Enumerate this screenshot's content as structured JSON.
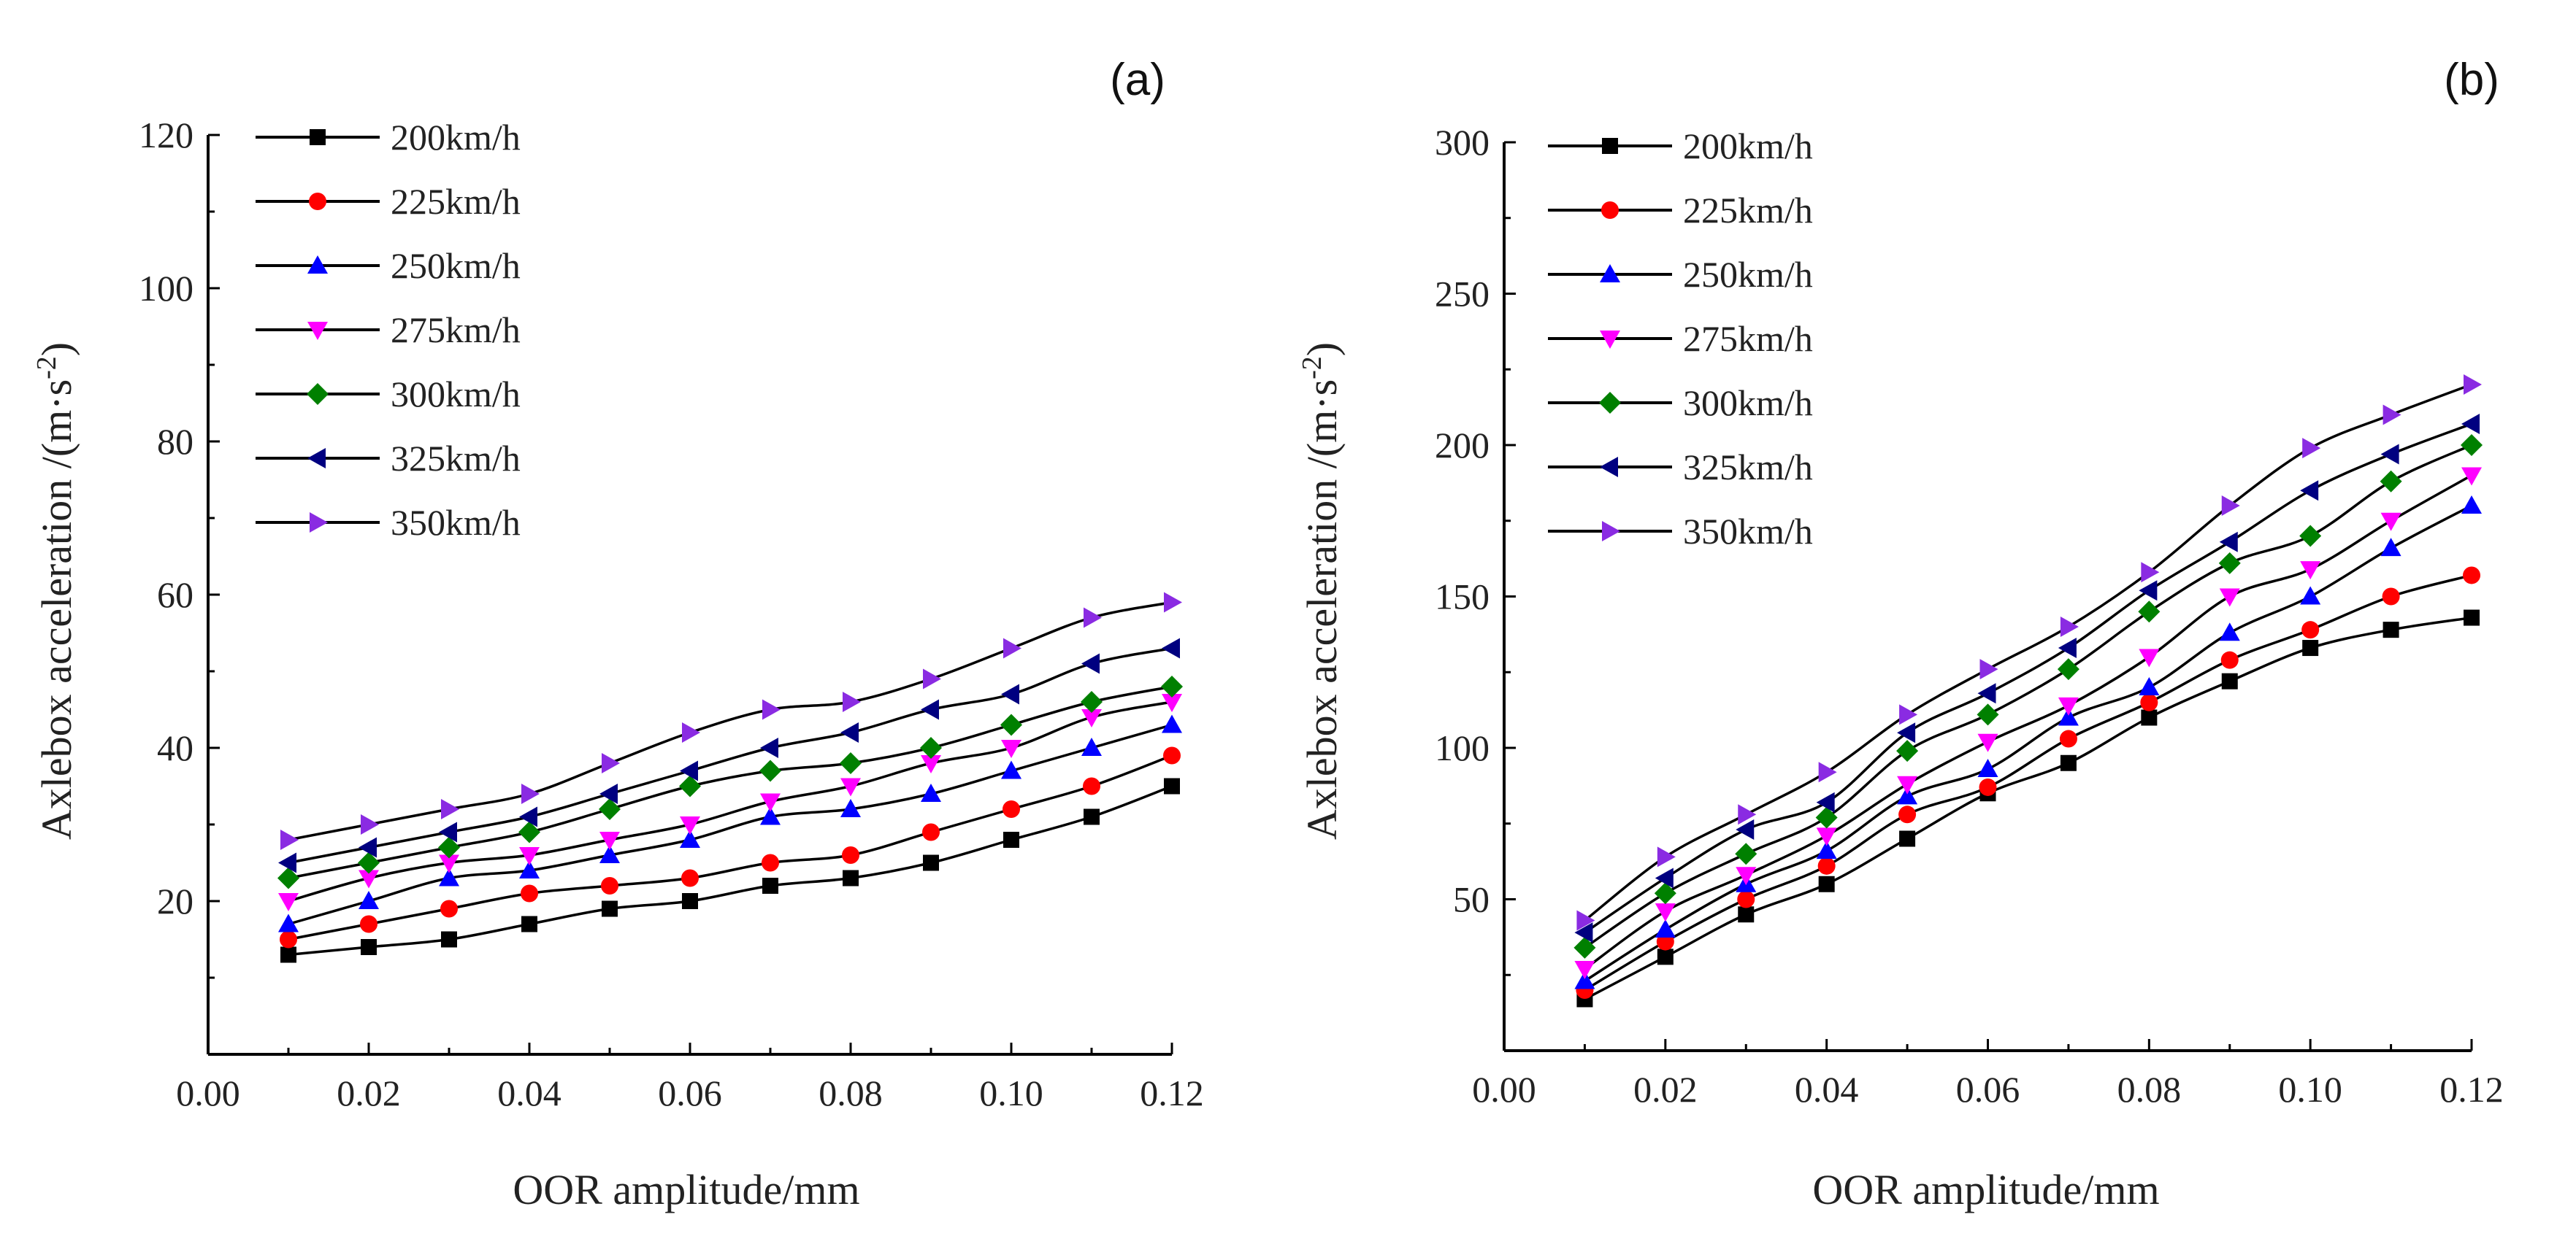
{
  "chart_data": [
    {
      "type": "line",
      "panel_label": "(a)",
      "xlabel": "OOR amplitude/mm",
      "ylabel_main": "Axlebox acceleration /(m·s",
      "ylabel_sup": "-2",
      "ylabel_close": ")",
      "xlim": [
        0.0,
        0.12
      ],
      "ylim": [
        0,
        120
      ],
      "xticks": [
        "0.00",
        "0.02",
        "0.04",
        "0.06",
        "0.08",
        "0.10",
        "0.12"
      ],
      "yticks": [
        "20",
        "40",
        "60",
        "80",
        "100",
        "120"
      ],
      "x": [
        0.01,
        0.02,
        0.03,
        0.04,
        0.05,
        0.06,
        0.07,
        0.08,
        0.09,
        0.1,
        0.11,
        0.12
      ],
      "series": [
        {
          "name": "200km/h",
          "color": "#000000",
          "marker": "square",
          "values": [
            13,
            14,
            15,
            17,
            19,
            20,
            22,
            23,
            25,
            28,
            31,
            35
          ]
        },
        {
          "name": "225km/h",
          "color": "#ff0000",
          "marker": "circle",
          "values": [
            15,
            17,
            19,
            21,
            22,
            23,
            25,
            26,
            29,
            32,
            35,
            39
          ]
        },
        {
          "name": "250km/h",
          "color": "#0000ff",
          "marker": "triangle-up",
          "values": [
            17,
            20,
            23,
            24,
            26,
            28,
            31,
            32,
            34,
            37,
            40,
            43
          ]
        },
        {
          "name": "275km/h",
          "color": "#ff00ff",
          "marker": "triangle-down",
          "values": [
            20,
            23,
            25,
            26,
            28,
            30,
            33,
            35,
            38,
            40,
            44,
            46
          ]
        },
        {
          "name": "300km/h",
          "color": "#008000",
          "marker": "diamond",
          "values": [
            23,
            25,
            27,
            29,
            32,
            35,
            37,
            38,
            40,
            43,
            46,
            48
          ]
        },
        {
          "name": "325km/h",
          "color": "#000080",
          "marker": "triangle-left",
          "values": [
            25,
            27,
            29,
            31,
            34,
            37,
            40,
            42,
            45,
            47,
            51,
            53
          ]
        },
        {
          "name": "350km/h",
          "color": "#8a2be2",
          "marker": "triangle-right",
          "values": [
            28,
            30,
            32,
            34,
            38,
            42,
            45,
            46,
            49,
            53,
            57,
            59
          ]
        }
      ]
    },
    {
      "type": "line",
      "panel_label": "(b)",
      "xlabel": "OOR amplitude/mm",
      "ylabel_main": "Axlebox acceleration /(m·s",
      "ylabel_sup": "-2",
      "ylabel_close": ")",
      "xlim": [
        0.0,
        0.12
      ],
      "ylim": [
        0,
        300
      ],
      "xticks": [
        "0.00",
        "0.02",
        "0.04",
        "0.06",
        "0.08",
        "0.10",
        "0.12"
      ],
      "yticks": [
        "50",
        "100",
        "150",
        "200",
        "250",
        "300"
      ],
      "x": [
        0.01,
        0.02,
        0.03,
        0.04,
        0.05,
        0.06,
        0.07,
        0.08,
        0.09,
        0.1,
        0.11,
        0.12
      ],
      "series": [
        {
          "name": "200km/h",
          "color": "#000000",
          "marker": "square",
          "values": [
            17,
            31,
            45,
            55,
            70,
            85,
            95,
            110,
            122,
            133,
            139,
            143
          ]
        },
        {
          "name": "225km/h",
          "color": "#ff0000",
          "marker": "circle",
          "values": [
            20,
            36,
            50,
            61,
            78,
            87,
            103,
            115,
            129,
            139,
            150,
            157
          ]
        },
        {
          "name": "250km/h",
          "color": "#0000ff",
          "marker": "triangle-up",
          "values": [
            23,
            40,
            55,
            66,
            84,
            93,
            110,
            120,
            138,
            150,
            166,
            180
          ]
        },
        {
          "name": "275km/h",
          "color": "#ff00ff",
          "marker": "triangle-down",
          "values": [
            27,
            46,
            58,
            71,
            88,
            102,
            114,
            130,
            150,
            159,
            175,
            190
          ]
        },
        {
          "name": "300km/h",
          "color": "#008000",
          "marker": "diamond",
          "values": [
            34,
            52,
            65,
            77,
            99,
            111,
            126,
            145,
            161,
            170,
            188,
            200
          ]
        },
        {
          "name": "325km/h",
          "color": "#000080",
          "marker": "triangle-left",
          "values": [
            39,
            57,
            73,
            82,
            105,
            118,
            133,
            152,
            168,
            185,
            197,
            207
          ]
        },
        {
          "name": "350km/h",
          "color": "#8a2be2",
          "marker": "triangle-right",
          "values": [
            43,
            64,
            78,
            92,
            111,
            126,
            140,
            158,
            180,
            199,
            210,
            220
          ]
        }
      ]
    }
  ]
}
